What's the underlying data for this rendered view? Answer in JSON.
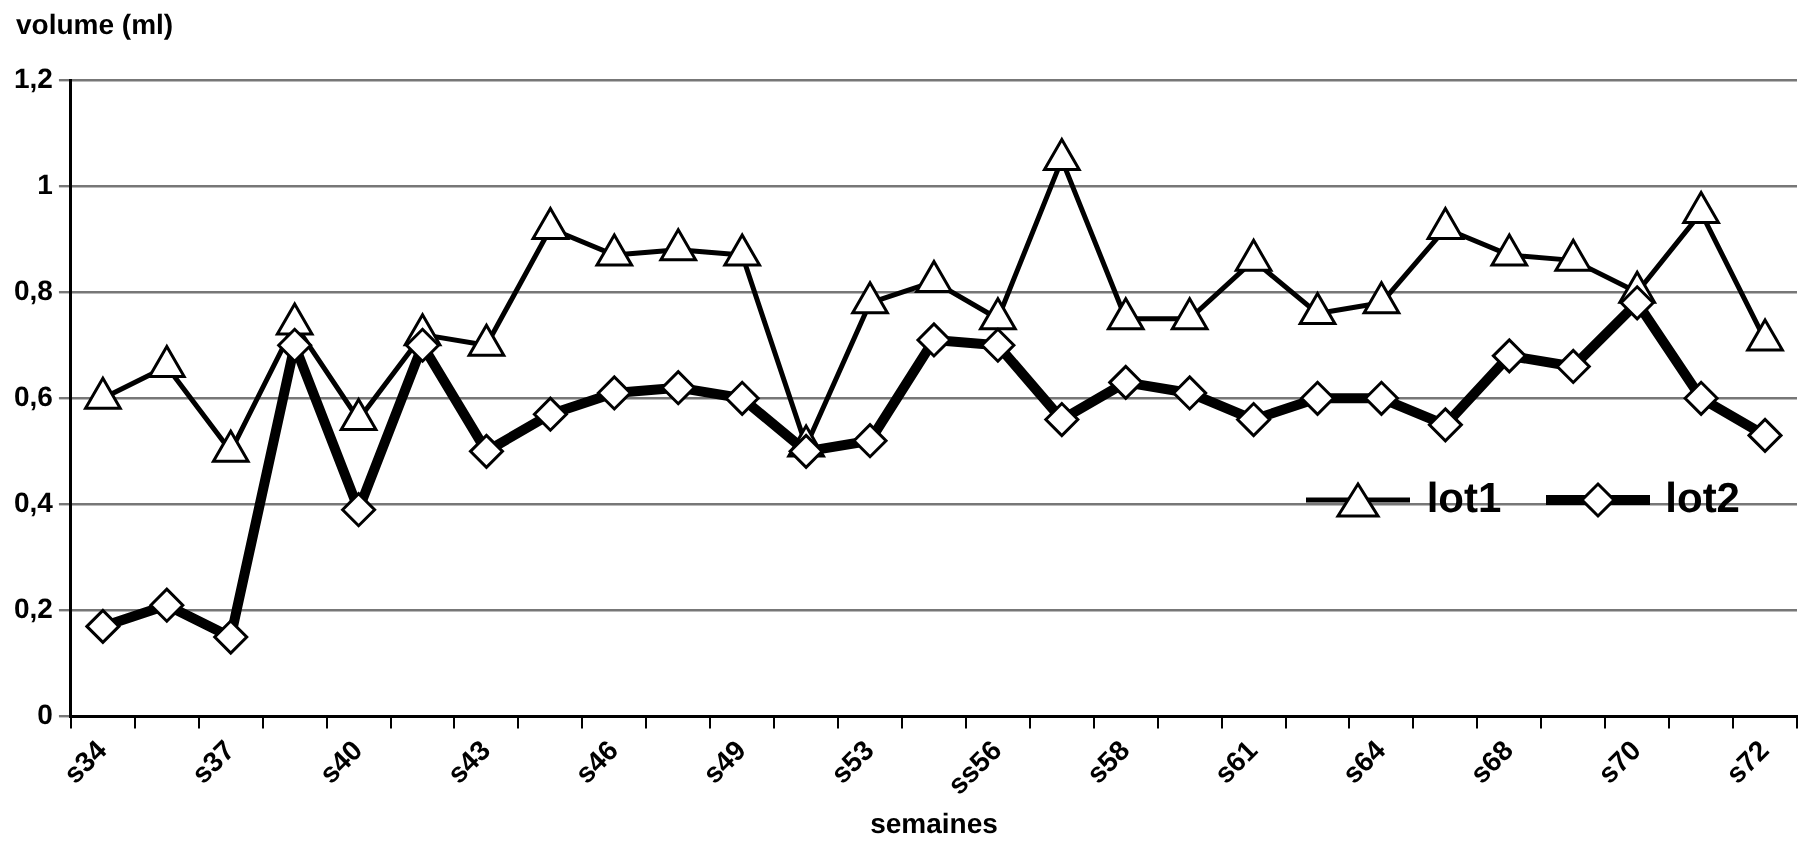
{
  "chart_data": {
    "type": "line",
    "ylabel": "volume (ml)",
    "xlabel": "semaines",
    "categories": [
      "s34",
      null,
      "s37",
      null,
      "s40",
      null,
      "s43",
      null,
      "s46",
      null,
      "s49",
      null,
      "s53",
      null,
      "ss56",
      null,
      "s58",
      null,
      "s61",
      null,
      "s64",
      null,
      "s68",
      null,
      "s70",
      null,
      "s72"
    ],
    "series": [
      {
        "name": "lot1",
        "color": "#000000",
        "marker": "triangle",
        "values": [
          0.6,
          0.66,
          0.5,
          0.74,
          0.56,
          0.72,
          0.7,
          0.92,
          0.87,
          0.88,
          0.87,
          0.51,
          0.78,
          0.82,
          0.75,
          1.05,
          0.75,
          0.75,
          0.86,
          0.76,
          0.78,
          0.92,
          0.87,
          0.86,
          0.8,
          0.95,
          0.71
        ]
      },
      {
        "name": "lot2",
        "color": "#000000",
        "marker": "diamond",
        "values": [
          0.17,
          0.21,
          0.15,
          0.7,
          0.39,
          0.7,
          0.5,
          0.57,
          0.61,
          0.62,
          0.6,
          0.5,
          0.52,
          0.71,
          0.7,
          0.56,
          0.63,
          0.61,
          0.56,
          0.6,
          0.6,
          0.55,
          0.68,
          0.66,
          0.78,
          0.6,
          0.53
        ]
      }
    ],
    "ylim": [
      0,
      1.2
    ],
    "yticks": [
      0,
      {
        "value": 0.2,
        "label": "0,2"
      },
      {
        "value": 0.4,
        "label": "0,4"
      },
      {
        "value": 0.6,
        "label": "0,6"
      },
      {
        "value": 0.8,
        "label": "0,8"
      },
      1,
      {
        "value": 1.2,
        "label": "1,2"
      }
    ],
    "grid": "y",
    "legend": "right",
    "line_style": "solid"
  }
}
